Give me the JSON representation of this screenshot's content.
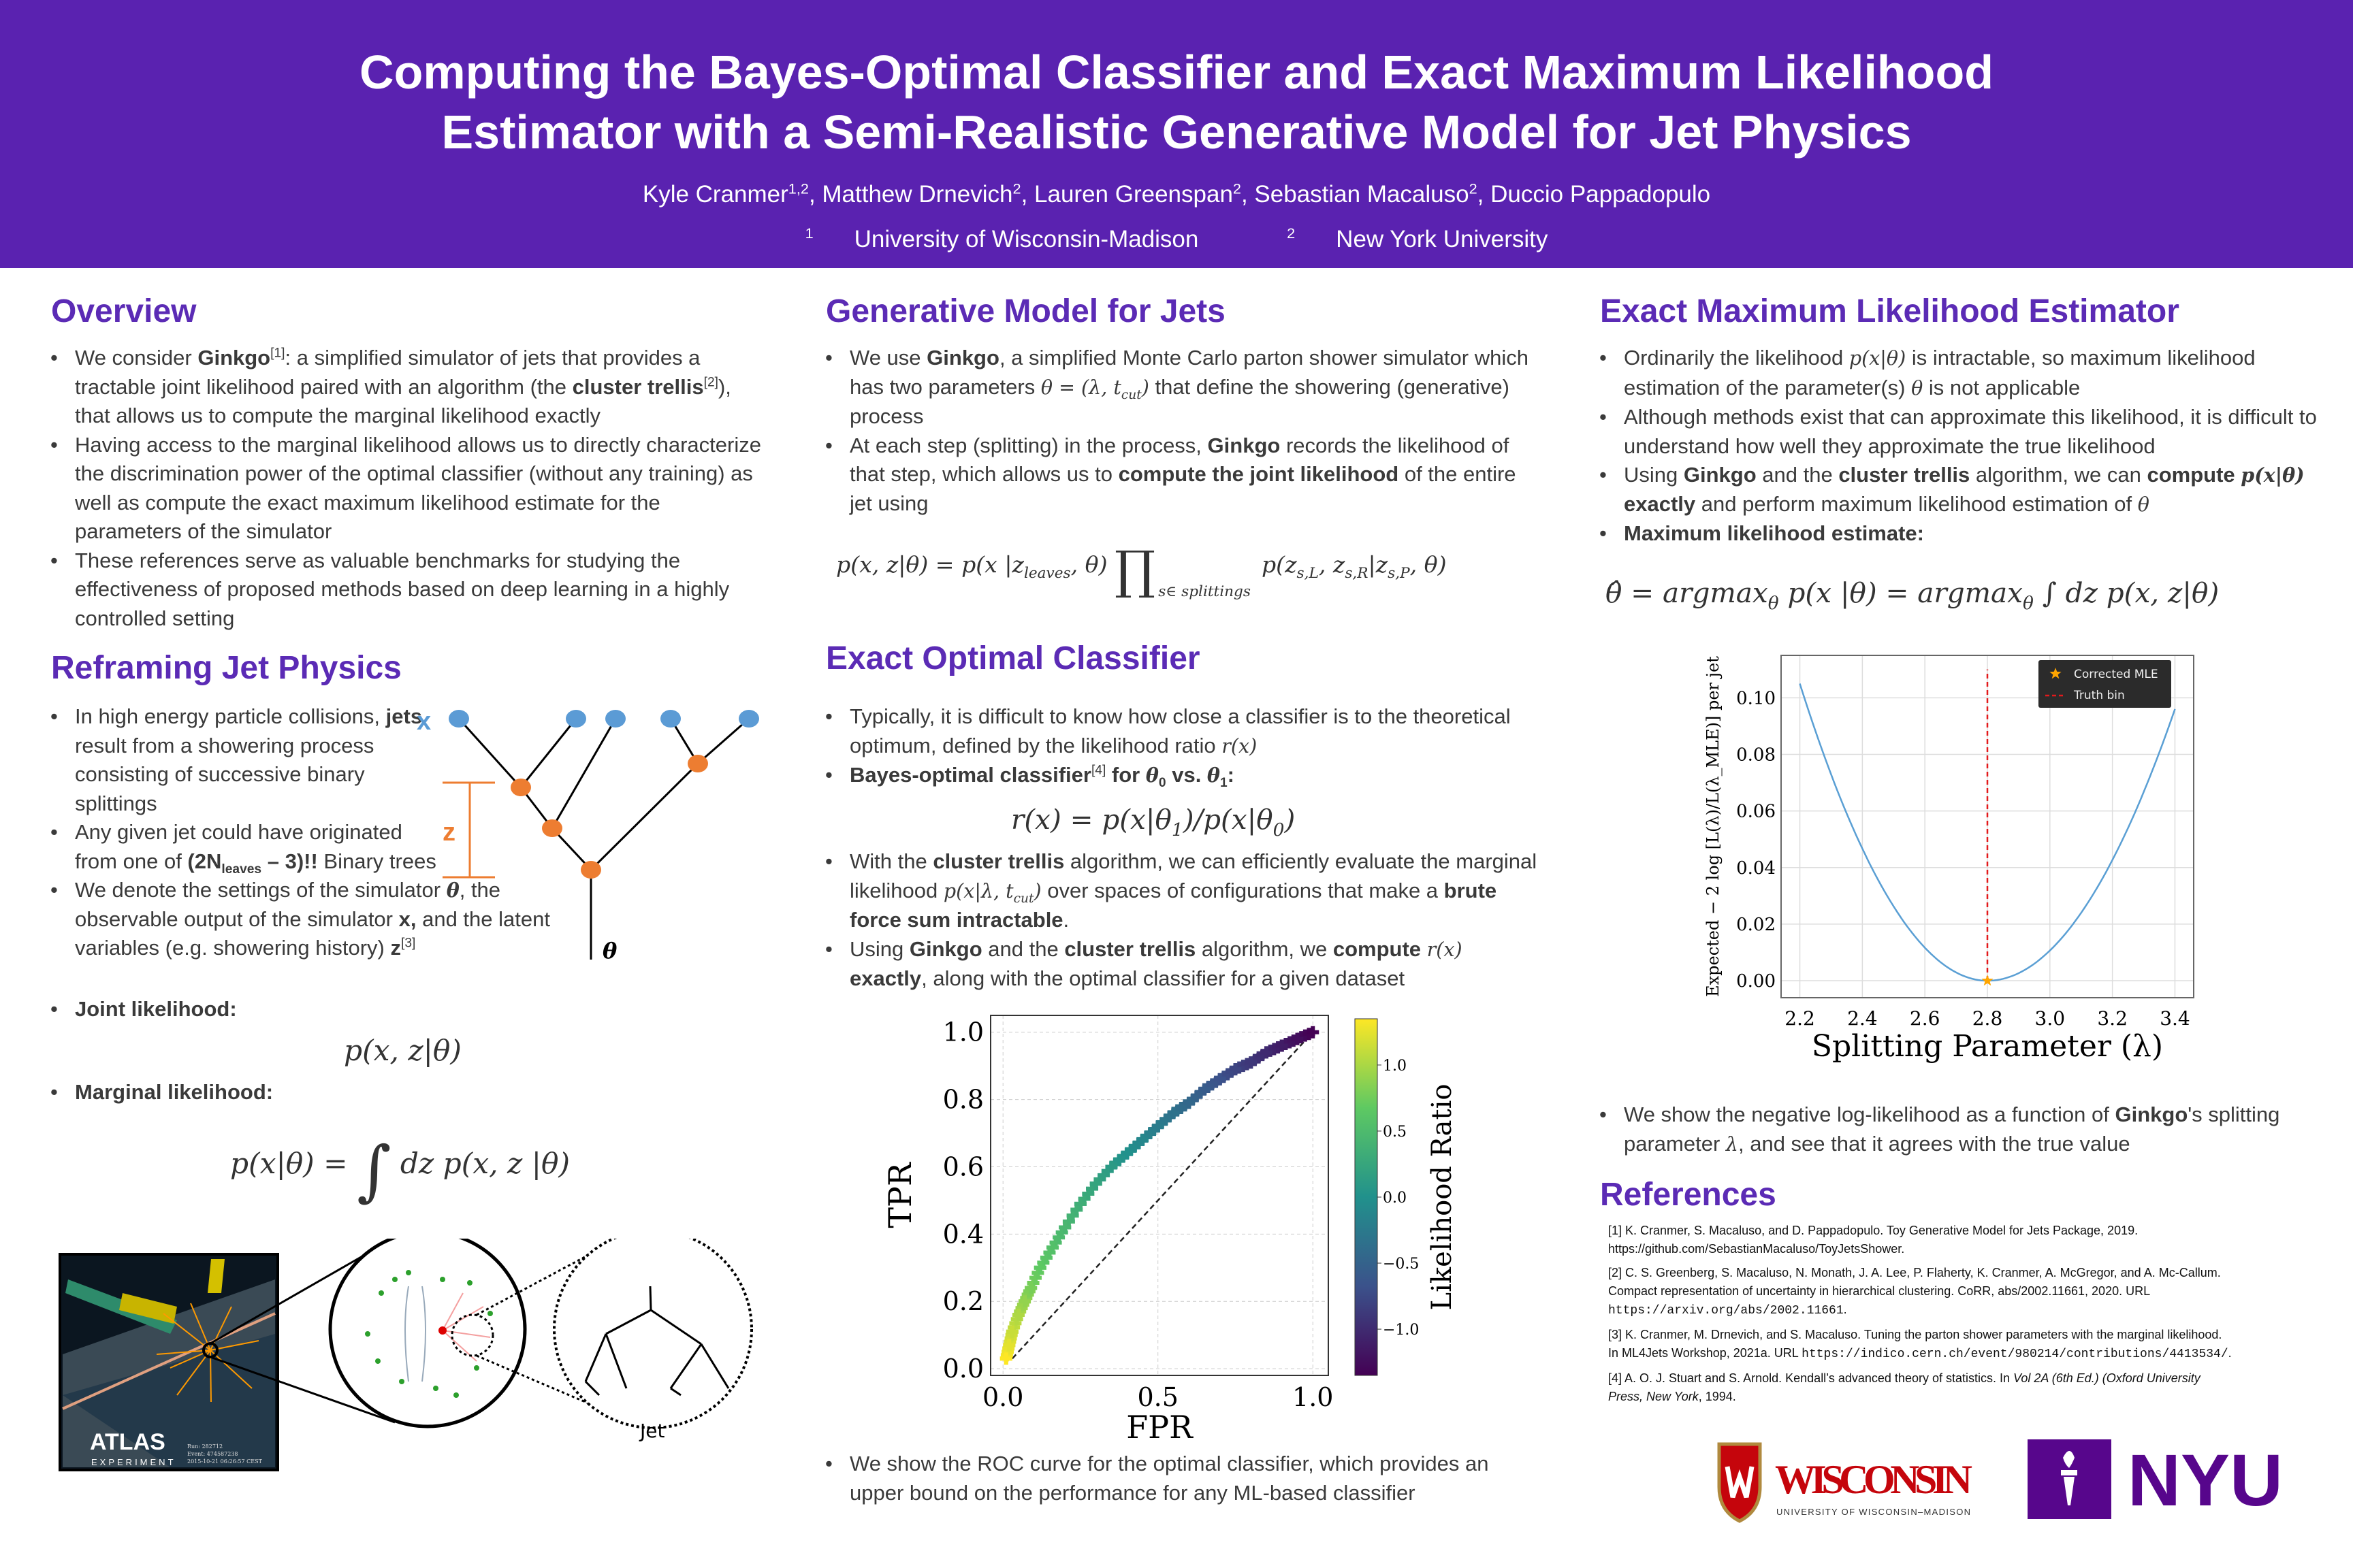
{
  "header": {
    "title_line1": "Computing the Bayes-Optimal Classifier and Exact Maximum Likelihood",
    "title_line2": "Estimator with a Semi-Realistic Generative Model for Jet Physics",
    "authors": [
      [
        "Kyle Cranmer",
        ""
      ],
      [
        "1,2",
        "sup"
      ],
      [
        ", Matthew Drnevich",
        ""
      ],
      [
        "2",
        "sup"
      ],
      [
        ", Lauren Greenspan",
        ""
      ],
      [
        "2",
        "sup"
      ],
      [
        ", Sebastian Macaluso",
        ""
      ],
      [
        "2",
        "sup"
      ],
      [
        ", Duccio Pappadopulo",
        ""
      ]
    ],
    "affiliations": [
      [
        [
          "1",
          "sup"
        ],
        [
          "University of Wisconsin-Madison",
          ""
        ]
      ],
      [
        [
          "2",
          "sup"
        ],
        [
          "New York University",
          ""
        ]
      ]
    ]
  },
  "overview": {
    "heading": "Overview",
    "bullets": [
      [
        [
          "We consider ",
          ""
        ],
        [
          "Ginkgo",
          "b"
        ],
        [
          "[1]",
          "sup"
        ],
        [
          ": a simplified simulator of jets that provides a tractable joint likelihood paired with an algorithm (the ",
          ""
        ],
        [
          "cluster trellis",
          "b"
        ],
        [
          "[2]",
          "sup"
        ],
        [
          "), that allows us to compute the marginal likelihood exactly",
          ""
        ]
      ],
      [
        [
          "Having access to the marginal likelihood allows us to directly characterize the discrimination power of the optimal classifier (without any training) as well as compute the exact maximum likelihood estimate for the parameters of the simulator",
          ""
        ]
      ],
      [
        [
          "These references serve as valuable benchmarks for studying the effectiveness of proposed methods based on deep learning in a highly controlled setting",
          ""
        ]
      ]
    ]
  },
  "reframing": {
    "heading": "Reframing Jet Physics",
    "bullets": [
      [
        [
          "In high energy particle collisions, ",
          ""
        ],
        [
          "jets",
          "b"
        ],
        [
          " result from a showering process consisting of successive binary splittings",
          ""
        ]
      ],
      [
        [
          "Any given jet could have originated from one of ",
          ""
        ],
        [
          "(2N",
          "b"
        ],
        [
          "leaves",
          "bsub"
        ],
        [
          " – 3)!!",
          "b"
        ],
        [
          " Binary trees",
          ""
        ]
      ],
      [
        [
          "We denote the settings of the simulator ",
          ""
        ],
        [
          "θ",
          "bm"
        ],
        [
          ", the observable output of the simulator ",
          ""
        ],
        [
          "x,",
          "b"
        ],
        [
          " and the latent variables (e.g. showering history) ",
          ""
        ],
        [
          "z",
          "b"
        ],
        [
          "[3]",
          "sup"
        ]
      ]
    ],
    "joint": [
      [
        [
          "Joint likelihood:",
          "b"
        ]
      ]
    ],
    "joint_formula": [
      [
        "p(x, z|θ)",
        "m"
      ]
    ],
    "marginal": [
      [
        [
          "Marginal likelihood:",
          "b"
        ]
      ]
    ],
    "marginal_formula": [
      [
        "p(x|θ) = ",
        "m"
      ],
      [
        "∫",
        "big"
      ],
      [
        " dz p(x, z |θ)",
        "m"
      ]
    ],
    "diagram": {
      "x_label": "x",
      "z_label": "z",
      "theta_label": "θ"
    },
    "images": {
      "atlas_logo": "ATLAS",
      "atlas_sub": "EXPERIMENT",
      "run_info": [
        "Run: 282712",
        "Event: 474587238",
        "2015-10-21 06:26:57 CEST"
      ],
      "jet_label": "Jet"
    }
  },
  "generative": {
    "heading": "Generative Model for Jets",
    "bullets": [
      [
        [
          "We use ",
          ""
        ],
        [
          "Ginkgo",
          "b"
        ],
        [
          ", a simplified Monte Carlo parton shower simulator which has two parameters ",
          ""
        ],
        [
          "θ = (λ, t",
          "m"
        ],
        [
          "cut",
          "msub"
        ],
        [
          ")",
          "m"
        ],
        [
          " that define the showering (generative) process",
          ""
        ]
      ],
      [
        [
          "At each step (splitting) in the process, ",
          ""
        ],
        [
          "Ginkgo",
          "b"
        ],
        [
          " records the likelihood of that step, which allows us to ",
          ""
        ],
        [
          "compute the joint likelihood",
          "b"
        ],
        [
          " of the entire jet using",
          ""
        ]
      ]
    ],
    "formula": [
      [
        "p(x, z|θ) = p(x |z",
        "m"
      ],
      [
        "leaves",
        "msub"
      ],
      [
        ", θ)  ",
        "m"
      ],
      [
        "∏",
        "big"
      ],
      [
        "s∈ splittings",
        "under"
      ],
      [
        "p(z",
        "m"
      ],
      [
        "s,L",
        "msub"
      ],
      [
        ", z",
        "m"
      ],
      [
        "s,R",
        "msub"
      ],
      [
        "|z",
        "m"
      ],
      [
        "s,P",
        "msub"
      ],
      [
        ", θ)",
        "m"
      ]
    ]
  },
  "classifier": {
    "heading": "Exact Optimal Classifier",
    "bullets_a": [
      [
        [
          "Typically, it is difficult to know how close a classifier is to the theoretical optimum, defined by the likelihood ratio ",
          ""
        ],
        [
          "r(x)",
          "m"
        ]
      ],
      [
        [
          "Bayes-optimal classifier",
          "b"
        ],
        [
          "[4]",
          "sup"
        ],
        [
          " for ",
          "b"
        ],
        [
          "θ",
          "bm"
        ],
        [
          "0",
          "bsub"
        ],
        [
          " vs. ",
          "b"
        ],
        [
          "θ",
          "bm"
        ],
        [
          "1",
          "bsub"
        ],
        [
          ":",
          "b"
        ]
      ]
    ],
    "formula": [
      [
        "r(x) = p(x|θ",
        "m"
      ],
      [
        "1",
        "msub"
      ],
      [
        ")/p(x|θ",
        "m"
      ],
      [
        "0",
        "msub"
      ],
      [
        ")",
        "m"
      ]
    ],
    "bullets_b": [
      [
        [
          "With the ",
          ""
        ],
        [
          "cluster trellis",
          "b"
        ],
        [
          " algorithm, we can efficiently evaluate the marginal likelihood ",
          ""
        ],
        [
          "p(x|λ, t",
          "m"
        ],
        [
          "cut",
          "msub"
        ],
        [
          ")",
          "m"
        ],
        [
          " over spaces of configurations that make a ",
          ""
        ],
        [
          "brute force sum intractable",
          "b"
        ],
        [
          ".",
          ""
        ]
      ],
      [
        [
          "Using ",
          ""
        ],
        [
          "Ginkgo",
          "b"
        ],
        [
          " and the ",
          ""
        ],
        [
          "cluster trellis",
          "b"
        ],
        [
          " algorithm, we ",
          ""
        ],
        [
          "compute ",
          "b"
        ],
        [
          "r(x)",
          "m"
        ],
        [
          " exactly",
          "b"
        ],
        [
          ", along with the optimal classifier for a given dataset",
          ""
        ]
      ]
    ],
    "bullets_c": [
      [
        [
          "We show the ROC curve for the optimal classifier, which provides an upper bound on the performance for any ML-based classifier",
          ""
        ]
      ]
    ]
  },
  "mle": {
    "heading": "Exact Maximum Likelihood Estimator",
    "bullets": [
      [
        [
          "Ordinarily the likelihood ",
          ""
        ],
        [
          "p(x|θ)",
          "m"
        ],
        [
          " is intractable, so maximum likelihood estimation of the parameter(s) ",
          ""
        ],
        [
          "θ",
          "m"
        ],
        [
          " is not applicable",
          ""
        ]
      ],
      [
        [
          "Although methods exist that can approximate this likelihood, it is difficult to understand how well they approximate the true likelihood",
          ""
        ]
      ],
      [
        [
          "Using ",
          ""
        ],
        [
          "Ginkgo",
          "b"
        ],
        [
          " and the ",
          ""
        ],
        [
          "cluster trellis",
          "b"
        ],
        [
          " algorithm, we can ",
          ""
        ],
        [
          "compute ",
          "b"
        ],
        [
          "p(x|θ)",
          "bm"
        ],
        [
          " exactly",
          "b"
        ],
        [
          " and perform maximum likelihood estimation of ",
          ""
        ],
        [
          "θ",
          "m"
        ]
      ],
      [
        [
          "Maximum likelihood estimate:",
          "b"
        ]
      ]
    ],
    "formula": [
      [
        "θ̂  =  argmax",
        "m"
      ],
      [
        "θ",
        "msub"
      ],
      [
        " p(x |θ)  =  argmax",
        "m"
      ],
      [
        "θ",
        "msub"
      ],
      [
        " ∫ dz p(x, z|θ)",
        "m"
      ]
    ],
    "bullets_after": [
      [
        [
          "We show the negative log-likelihood as a function of ",
          ""
        ],
        [
          "Ginkgo",
          "b"
        ],
        [
          "'s splitting parameter ",
          ""
        ],
        [
          "λ",
          "m"
        ],
        [
          ", and see that it agrees with the true value",
          ""
        ]
      ]
    ]
  },
  "references": {
    "heading": "References",
    "items": [
      [
        [
          "[1] K. Cranmer, S. Macaluso, and D. Pappadopulo. Toy Generative Model for Jets Package, 2019. https://github.com/SebastianMacaluso/ToyJetsShower.",
          ""
        ]
      ],
      [
        [
          "[2] C. S. Greenberg, S. Macaluso, N. Monath, J. A. Lee, P. Flaherty, K. Cranmer, A. McGregor, and A. Mc-Callum. Compact representation of uncertainty in hierarchical clustering. CoRR, abs/2002.11661, 2020. URL ",
          ""
        ],
        [
          "https://arxiv.org/abs/2002.11661",
          "mono"
        ],
        [
          ".",
          ""
        ]
      ],
      [
        [
          "[3] K. Cranmer, M. Drnevich, and S. Macaluso. Tuning the parton shower parameters with the marginal likelihood. In ML4Jets Workshop, 2021a. URL ",
          ""
        ],
        [
          "https://indico.cern.ch/event/980214/contributions/4413534/",
          "mono"
        ],
        [
          ".",
          ""
        ]
      ],
      [
        [
          "[4] A. O. J. Stuart and S. Arnold. Kendall’s advanced theory of statistics. In ",
          ""
        ],
        [
          "Vol 2A (6th Ed.) (Oxford University Press, New York",
          ""
        ],
        [
          ", 1994.",
          ""
        ]
      ]
    ]
  },
  "logos": {
    "wisconsin": "WISCONSIN",
    "wisconsin_sub": "UNIVERSITY OF WISCONSIN–MADISON",
    "nyu": "NYU"
  },
  "colors": {
    "header": "#5a22b0",
    "heading": "#5b2bb5",
    "tree_leaf": "#5b9bd5",
    "tree_node": "#ed7d31",
    "curve": "#5a9fd4",
    "truth": "#e31a1c",
    "mle_star": "#ffa500"
  },
  "chart_data": [
    {
      "type": "scatter",
      "title": "",
      "xlabel": "FPR",
      "ylabel": "TPR",
      "xlim": [
        -0.04,
        1.05
      ],
      "ylim": [
        -0.02,
        1.05
      ],
      "xticks": [
        "0.0",
        "0.5",
        "1.0"
      ],
      "yticks": [
        "0.0",
        "0.2",
        "0.4",
        "0.6",
        "0.8",
        "1.0"
      ],
      "grid": true,
      "x": [
        0.01,
        0.02,
        0.03,
        0.05,
        0.07,
        0.09,
        0.12,
        0.16,
        0.2,
        0.25,
        0.3,
        0.35,
        0.4,
        0.45,
        0.5,
        0.55,
        0.6,
        0.65,
        0.7,
        0.75,
        0.8,
        0.85,
        0.9,
        0.95,
        1.0
      ],
      "y": [
        0.03,
        0.07,
        0.11,
        0.16,
        0.2,
        0.24,
        0.3,
        0.36,
        0.42,
        0.49,
        0.55,
        0.6,
        0.64,
        0.68,
        0.72,
        0.76,
        0.79,
        0.83,
        0.86,
        0.89,
        0.91,
        0.94,
        0.96,
        0.98,
        1.0
      ],
      "color_value_range": [
        1.35,
        -1.35
      ],
      "diagonal": "random classifier (dashed)",
      "colorbar": {
        "label": "Likelihood Ratio",
        "ticks": [
          "−1.0",
          "−0.5",
          "0.0",
          "0.5",
          "1.0"
        ],
        "range": [
          -1.35,
          1.35
        ]
      }
    },
    {
      "type": "line",
      "title": "",
      "xlabel": "Splitting Parameter (λ)",
      "ylabel": "Expected  − 2 log [L(λ)/L(λ_MLE)]  per jet",
      "xlim": [
        2.14,
        3.46
      ],
      "ylim": [
        -0.006,
        0.115
      ],
      "xticks": [
        "2.2",
        "2.4",
        "2.6",
        "2.8",
        "3.0",
        "3.2",
        "3.4"
      ],
      "yticks": [
        "0.00",
        "0.02",
        "0.04",
        "0.06",
        "0.08",
        "0.10"
      ],
      "grid": true,
      "x": [
        2.2,
        2.3,
        2.4,
        2.5,
        2.6,
        2.7,
        2.8,
        2.9,
        3.0,
        3.1,
        3.2,
        3.3,
        3.4
      ],
      "y": [
        0.105,
        0.073,
        0.047,
        0.026,
        0.0117,
        0.0029,
        0.0,
        0.0027,
        0.0107,
        0.024,
        0.0427,
        0.0667,
        0.096
      ],
      "truth_bin": 2.8,
      "mle": 2.8,
      "legend": {
        "position": "top-right",
        "entries": [
          "Corrected MLE",
          "Truth bin"
        ]
      }
    }
  ]
}
